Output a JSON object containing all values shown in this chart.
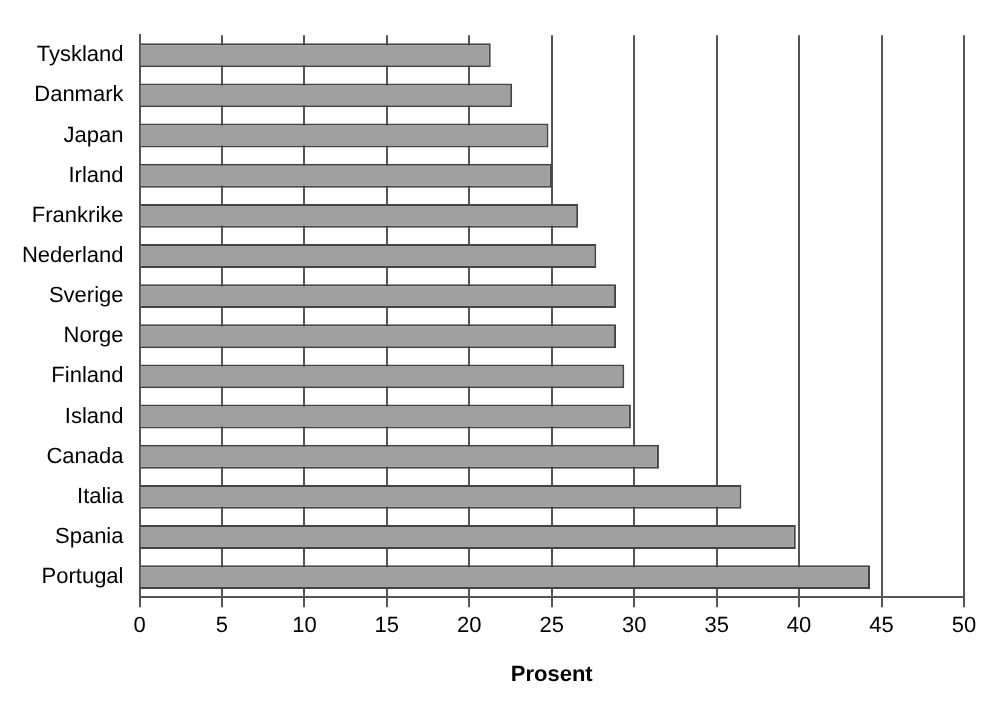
{
  "chart_data": {
    "type": "bar",
    "orientation": "horizontal",
    "xlabel": "Prosent",
    "categories": [
      "Tyskland",
      "Danmark",
      "Japan",
      "Irland",
      "Frankrike",
      "Nederland",
      "Sverige",
      "Norge",
      "Finland",
      "Island",
      "Canada",
      "Italia",
      "Spania",
      "Portugal"
    ],
    "values": [
      21.3,
      22.6,
      24.8,
      25.0,
      26.6,
      27.7,
      28.9,
      28.9,
      29.4,
      29.8,
      31.5,
      36.5,
      39.8,
      44.3
    ],
    "color": "#a0a0a0",
    "xlim": [
      0,
      50
    ],
    "xticks": [
      0,
      5,
      10,
      15,
      20,
      25,
      30,
      35,
      40,
      45,
      50
    ],
    "grid": "x",
    "legend": false
  }
}
